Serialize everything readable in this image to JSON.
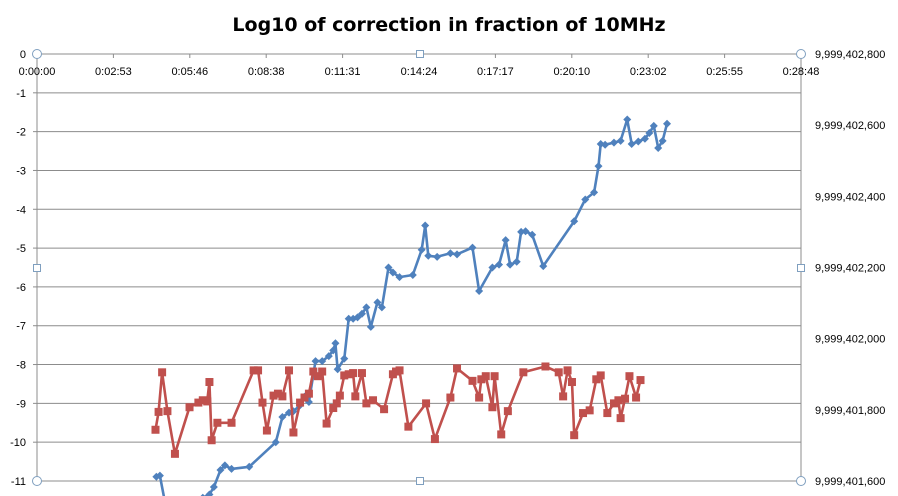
{
  "chart_data": {
    "type": "line",
    "title": "Log10 of correction in fraction of 10MHz",
    "xlabel": "",
    "ylabel": "",
    "y2label": "",
    "x_range_seconds": [
      0,
      1728
    ],
    "x_ticks": [
      "0:00:00",
      "0:02:53",
      "0:05:46",
      "0:08:38",
      "0:11:31",
      "0:14:24",
      "0:17:17",
      "0:20:10",
      "0:23:02",
      "0:25:55",
      "0:28:48"
    ],
    "ylim": [
      -11,
      0
    ],
    "y_ticks": [
      "0",
      "-1",
      "-2",
      "-3",
      "-4",
      "-5",
      "-6",
      "-7",
      "-8",
      "-9",
      "-10",
      "-11"
    ],
    "y2lim": [
      9999401600,
      9999402800
    ],
    "y2_ticks": [
      "9,999,402,800",
      "9,999,402,600",
      "9,999,402,400",
      "9,999,402,200",
      "9,999,402,000",
      "9,999,401,800",
      "9,999,401,600"
    ],
    "grid": true,
    "legend": "none",
    "series": [
      {
        "axis": "right",
        "color": "#4F81BD",
        "marker": "diamond",
        "points": [
          [
            270,
            9999401612
          ],
          [
            278,
            9999401615
          ],
          [
            290,
            9999401537
          ],
          [
            310,
            9999401544
          ],
          [
            333,
            9999401541
          ],
          [
            375,
            9999401553
          ],
          [
            390,
            9999401562
          ],
          [
            400,
            9999401583
          ],
          [
            415,
            9999401631
          ],
          [
            425,
            9999401644
          ],
          [
            440,
            9999401634
          ],
          [
            480,
            9999401640
          ],
          [
            540,
            9999401709
          ],
          [
            555,
            9999401780
          ],
          [
            570,
            9999401792
          ],
          [
            580,
            9999401796
          ],
          [
            595,
            9999401813
          ],
          [
            605,
            9999401837
          ],
          [
            615,
            9999401822
          ],
          [
            630,
            9999401937
          ],
          [
            645,
            9999401937
          ],
          [
            660,
            9999401951
          ],
          [
            670,
            9999401967
          ],
          [
            675,
            9999401987
          ],
          [
            680,
            9999401914
          ],
          [
            695,
            9999401944
          ],
          [
            705,
            9999402056
          ],
          [
            715,
            9999402056
          ],
          [
            725,
            9999402060
          ],
          [
            735,
            9999402070
          ],
          [
            745,
            9999402088
          ],
          [
            755,
            9999402033
          ],
          [
            770,
            9999402102
          ],
          [
            780,
            9999402088
          ],
          [
            795,
            9999402200
          ],
          [
            805,
            9999402186
          ],
          [
            820,
            9999402173
          ],
          [
            850,
            9999402179
          ],
          [
            870,
            9999402250
          ],
          [
            878,
            9999402318
          ],
          [
            885,
            9999402233
          ],
          [
            905,
            9999402230
          ],
          [
            935,
            9999402240
          ],
          [
            950,
            9999402237
          ],
          [
            985,
            9999402256
          ],
          [
            1000,
            9999402134
          ],
          [
            1030,
            9999402200
          ],
          [
            1045,
            9999402208
          ],
          [
            1060,
            9999402277
          ],
          [
            1070,
            9999402208
          ],
          [
            1085,
            9999402216
          ],
          [
            1095,
            9999402300
          ],
          [
            1105,
            9999402302
          ],
          [
            1120,
            9999402292
          ],
          [
            1145,
            9999402204
          ],
          [
            1215,
            9999402330
          ],
          [
            1240,
            9999402391
          ],
          [
            1260,
            9999402411
          ],
          [
            1270,
            9999402485
          ],
          [
            1275,
            9999402547
          ],
          [
            1285,
            9999402545
          ],
          [
            1305,
            9999402551
          ],
          [
            1320,
            9999402556
          ],
          [
            1335,
            9999402616
          ],
          [
            1345,
            9999402547
          ],
          [
            1360,
            9999402554
          ],
          [
            1375,
            9999402562
          ],
          [
            1385,
            9999402578
          ],
          [
            1395,
            9999402598
          ],
          [
            1405,
            9999402536
          ],
          [
            1415,
            9999402556
          ],
          [
            1425,
            9999402604
          ]
        ]
      },
      {
        "axis": "left",
        "color": "#C0504D",
        "marker": "square",
        "points": [
          [
            268,
            -9.68
          ],
          [
            275,
            -9.22
          ],
          [
            283,
            -8.2
          ],
          [
            295,
            -9.2
          ],
          [
            312,
            -10.3
          ],
          [
            345,
            -9.1
          ],
          [
            365,
            -8.98
          ],
          [
            375,
            -8.92
          ],
          [
            385,
            -8.95
          ],
          [
            390,
            -8.45
          ],
          [
            395,
            -9.95
          ],
          [
            408,
            -9.5
          ],
          [
            440,
            -9.5
          ],
          [
            490,
            -8.15
          ],
          [
            500,
            -8.15
          ],
          [
            510,
            -8.98
          ],
          [
            520,
            -9.7
          ],
          [
            535,
            -8.8
          ],
          [
            545,
            -8.75
          ],
          [
            555,
            -8.82
          ],
          [
            570,
            -8.15
          ],
          [
            580,
            -9.75
          ],
          [
            595,
            -8.98
          ],
          [
            605,
            -8.85
          ],
          [
            615,
            -8.75
          ],
          [
            625,
            -8.18
          ],
          [
            635,
            -8.3
          ],
          [
            645,
            -8.18
          ],
          [
            655,
            -9.52
          ],
          [
            670,
            -9.12
          ],
          [
            678,
            -9.0
          ],
          [
            685,
            -8.8
          ],
          [
            695,
            -8.28
          ],
          [
            705,
            -8.25
          ],
          [
            715,
            -8.22
          ],
          [
            720,
            -8.82
          ],
          [
            735,
            -8.22
          ],
          [
            745,
            -9.0
          ],
          [
            760,
            -8.92
          ],
          [
            785,
            -9.15
          ],
          [
            805,
            -8.25
          ],
          [
            812,
            -8.18
          ],
          [
            820,
            -8.15
          ],
          [
            840,
            -9.6
          ],
          [
            880,
            -9.0
          ],
          [
            900,
            -9.92
          ],
          [
            935,
            -8.85
          ],
          [
            950,
            -8.1
          ],
          [
            985,
            -8.42
          ],
          [
            1000,
            -8.85
          ],
          [
            1005,
            -8.38
          ],
          [
            1015,
            -8.3
          ],
          [
            1030,
            -9.1
          ],
          [
            1035,
            -8.3
          ],
          [
            1050,
            -9.8
          ],
          [
            1065,
            -9.2
          ],
          [
            1100,
            -8.2
          ],
          [
            1150,
            -8.05
          ],
          [
            1180,
            -8.2
          ],
          [
            1190,
            -8.82
          ],
          [
            1200,
            -8.15
          ],
          [
            1210,
            -8.45
          ],
          [
            1215,
            -9.82
          ],
          [
            1235,
            -9.25
          ],
          [
            1250,
            -9.18
          ],
          [
            1265,
            -8.38
          ],
          [
            1275,
            -8.28
          ],
          [
            1290,
            -9.25
          ],
          [
            1305,
            -9.0
          ],
          [
            1315,
            -8.92
          ],
          [
            1320,
            -9.38
          ],
          [
            1330,
            -8.88
          ],
          [
            1340,
            -8.3
          ],
          [
            1355,
            -8.85
          ],
          [
            1365,
            -8.4
          ]
        ]
      }
    ]
  }
}
